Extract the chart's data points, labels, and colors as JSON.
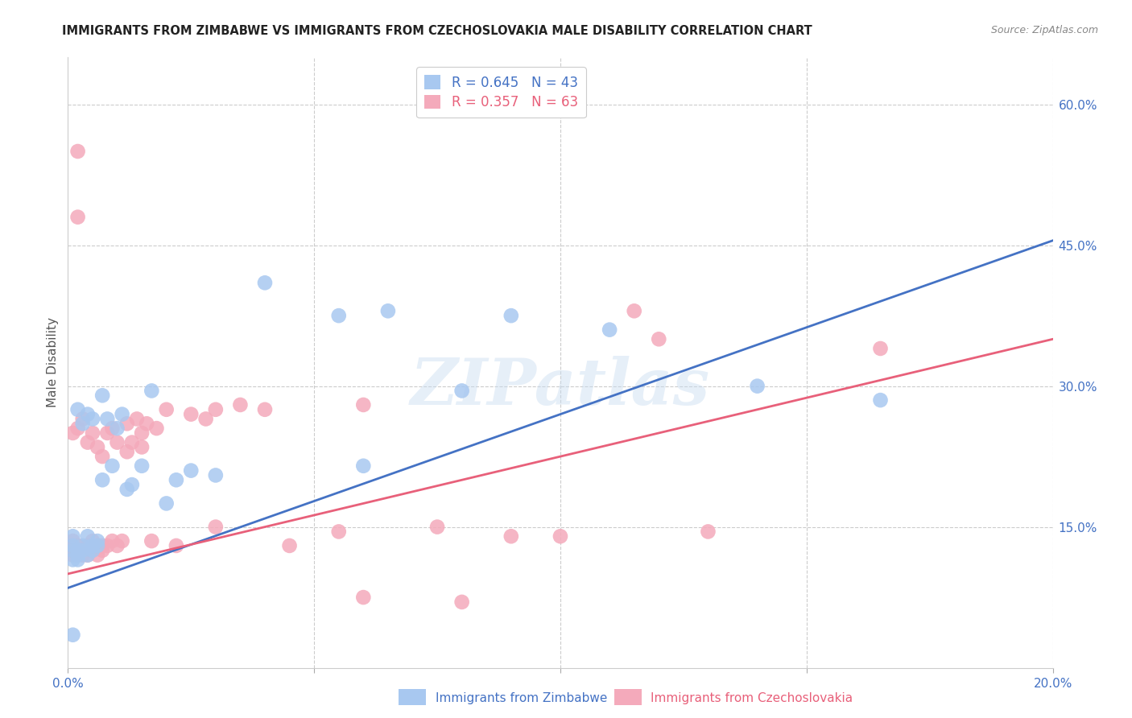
{
  "title": "IMMIGRANTS FROM ZIMBABWE VS IMMIGRANTS FROM CZECHOSLOVAKIA MALE DISABILITY CORRELATION CHART",
  "source": "Source: ZipAtlas.com",
  "ylabel": "Male Disability",
  "xlim": [
    0.0,
    0.2
  ],
  "ylim": [
    0.0,
    0.65
  ],
  "series1_name": "Immigrants from Zimbabwe",
  "series1_R": 0.645,
  "series1_N": 43,
  "series1_color": "#A8C8F0",
  "series1_line_color": "#4472C4",
  "series2_name": "Immigrants from Czechoslovakia",
  "series2_R": 0.357,
  "series2_N": 63,
  "series2_color": "#F4AABB",
  "series2_line_color": "#E8607A",
  "watermark": "ZIPatlas",
  "background_color": "#FFFFFF",
  "grid_color": "#CCCCCC",
  "zimbabwe_x": [
    0.001,
    0.001,
    0.001,
    0.001,
    0.002,
    0.002,
    0.002,
    0.002,
    0.003,
    0.003,
    0.003,
    0.004,
    0.004,
    0.004,
    0.005,
    0.005,
    0.005,
    0.006,
    0.006,
    0.007,
    0.007,
    0.008,
    0.009,
    0.01,
    0.011,
    0.012,
    0.013,
    0.015,
    0.017,
    0.02,
    0.022,
    0.025,
    0.03,
    0.04,
    0.055,
    0.06,
    0.065,
    0.08,
    0.09,
    0.11,
    0.14,
    0.165,
    0.001
  ],
  "zimbabwe_y": [
    0.115,
    0.125,
    0.13,
    0.14,
    0.115,
    0.12,
    0.125,
    0.275,
    0.125,
    0.13,
    0.26,
    0.12,
    0.14,
    0.27,
    0.125,
    0.13,
    0.265,
    0.13,
    0.135,
    0.2,
    0.29,
    0.265,
    0.215,
    0.255,
    0.27,
    0.19,
    0.195,
    0.215,
    0.295,
    0.175,
    0.2,
    0.21,
    0.205,
    0.41,
    0.375,
    0.215,
    0.38,
    0.295,
    0.375,
    0.36,
    0.3,
    0.285,
    0.035
  ],
  "czechoslovakia_x": [
    0.001,
    0.001,
    0.001,
    0.001,
    0.001,
    0.002,
    0.002,
    0.002,
    0.002,
    0.003,
    0.003,
    0.003,
    0.004,
    0.004,
    0.004,
    0.005,
    0.005,
    0.005,
    0.005,
    0.006,
    0.006,
    0.006,
    0.007,
    0.007,
    0.007,
    0.008,
    0.008,
    0.009,
    0.009,
    0.01,
    0.01,
    0.011,
    0.012,
    0.012,
    0.013,
    0.014,
    0.015,
    0.015,
    0.016,
    0.017,
    0.018,
    0.02,
    0.022,
    0.025,
    0.028,
    0.03,
    0.03,
    0.035,
    0.04,
    0.045,
    0.055,
    0.06,
    0.075,
    0.08,
    0.09,
    0.1,
    0.115,
    0.13,
    0.165,
    0.002,
    0.002,
    0.06,
    0.12
  ],
  "czechoslovakia_y": [
    0.12,
    0.125,
    0.13,
    0.135,
    0.25,
    0.12,
    0.125,
    0.13,
    0.255,
    0.12,
    0.125,
    0.265,
    0.12,
    0.13,
    0.24,
    0.125,
    0.13,
    0.135,
    0.25,
    0.12,
    0.13,
    0.235,
    0.125,
    0.13,
    0.225,
    0.13,
    0.25,
    0.135,
    0.255,
    0.13,
    0.24,
    0.135,
    0.23,
    0.26,
    0.24,
    0.265,
    0.235,
    0.25,
    0.26,
    0.135,
    0.255,
    0.275,
    0.13,
    0.27,
    0.265,
    0.15,
    0.275,
    0.28,
    0.275,
    0.13,
    0.145,
    0.28,
    0.15,
    0.07,
    0.14,
    0.14,
    0.38,
    0.145,
    0.34,
    0.55,
    0.48,
    0.075,
    0.35
  ],
  "line1_x0": 0.0,
  "line1_y0": 0.085,
  "line1_x1": 0.2,
  "line1_y1": 0.455,
  "line2_x0": 0.0,
  "line2_y0": 0.1,
  "line2_x1": 0.2,
  "line2_y1": 0.35
}
